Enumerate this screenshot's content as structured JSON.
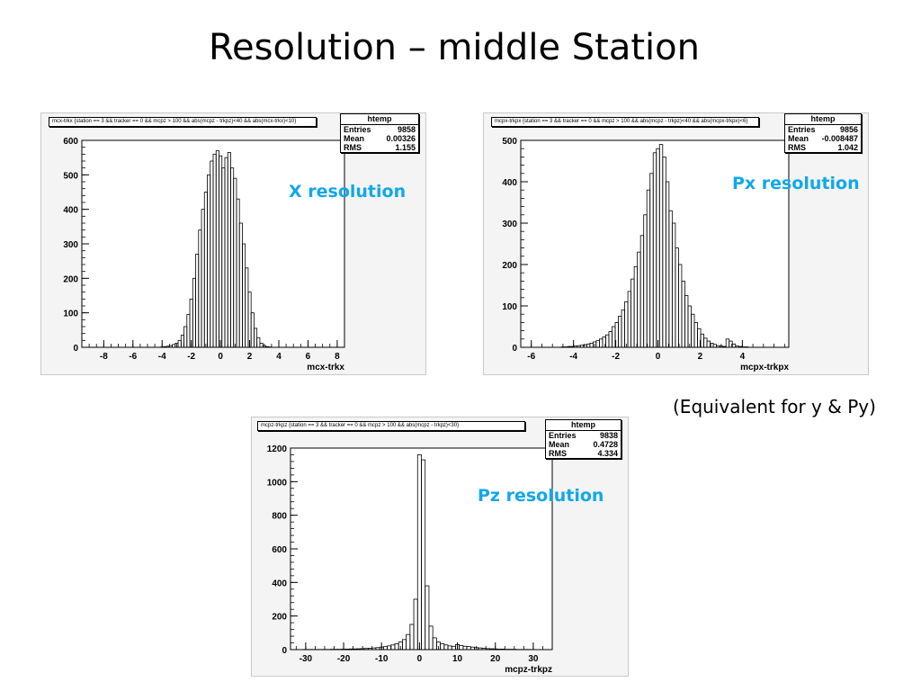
{
  "slide": {
    "title": "Resolution – middle Station",
    "note": "(Equivalent for y & Py)"
  },
  "chart_data": [
    {
      "type": "bar",
      "hist_title": "mcx-trkx {station == 3 && tracker == 0 && mcpz > 100 && abs(mcpz - trkpz)<40 && abs(mcx-trkx)<10}",
      "stats": {
        "name": "htemp",
        "entries_label": "Entries",
        "entries": "9858",
        "mean_label": "Mean",
        "mean": "0.00326",
        "rms_label": "RMS",
        "rms": "1.155"
      },
      "label": "X resolution",
      "xlabel": "mcx-trkx",
      "ylabel": "",
      "xlim": [
        -9.5,
        8.5
      ],
      "ylim": [
        0,
        600
      ],
      "xticks": [
        -8,
        -6,
        -4,
        -2,
        0,
        2,
        4,
        6,
        8
      ],
      "yticks": [
        0,
        100,
        200,
        300,
        400,
        500,
        600
      ],
      "bin_width": 0.2,
      "x": [
        -4.0,
        -3.8,
        -3.6,
        -3.4,
        -3.2,
        -3.0,
        -2.8,
        -2.6,
        -2.4,
        -2.2,
        -2.0,
        -1.8,
        -1.6,
        -1.4,
        -1.2,
        -1.0,
        -0.8,
        -0.6,
        -0.4,
        -0.2,
        0.0,
        0.2,
        0.4,
        0.6,
        0.8,
        1.0,
        1.2,
        1.4,
        1.6,
        1.8,
        2.0,
        2.2,
        2.4,
        2.6,
        2.8,
        3.0,
        3.2,
        3.4
      ],
      "values": [
        1,
        2,
        3,
        5,
        8,
        12,
        20,
        35,
        60,
        95,
        140,
        200,
        270,
        340,
        400,
        450,
        500,
        540,
        560,
        570,
        555,
        520,
        550,
        565,
        520,
        490,
        430,
        360,
        300,
        230,
        160,
        100,
        55,
        28,
        12,
        5,
        2,
        1
      ]
    },
    {
      "type": "bar",
      "hist_title": "mcpx-trkpx {station == 3 && tracker == 0 && mcpz > 100 && abs(mcpz - trkpz)<40 && abs(mcpx-trkpx)<6}",
      "stats": {
        "name": "htemp",
        "entries_label": "Entries",
        "entries": "9856",
        "mean_label": "Mean",
        "mean": "-0.008487",
        "rms_label": "RMS",
        "rms": "1.042"
      },
      "label": "Px resolution",
      "xlabel": "mcpx-trkpx",
      "ylabel": "",
      "xlim": [
        -6.5,
        6.2
      ],
      "ylim": [
        0,
        500
      ],
      "xticks": [
        -6,
        -4,
        -2,
        0,
        2,
        4
      ],
      "yticks": [
        0,
        100,
        200,
        300,
        400,
        500
      ],
      "bin_width": 0.15,
      "x": [
        -4.5,
        -4.35,
        -4.2,
        -4.05,
        -3.9,
        -3.75,
        -3.6,
        -3.45,
        -3.3,
        -3.15,
        -3.0,
        -2.85,
        -2.7,
        -2.55,
        -2.4,
        -2.25,
        -2.1,
        -1.95,
        -1.8,
        -1.65,
        -1.5,
        -1.35,
        -1.2,
        -1.05,
        -0.9,
        -0.75,
        -0.6,
        -0.45,
        -0.3,
        -0.15,
        0.0,
        0.15,
        0.3,
        0.45,
        0.6,
        0.75,
        0.9,
        1.05,
        1.2,
        1.35,
        1.5,
        1.65,
        1.8,
        1.95,
        2.1,
        2.25,
        2.4,
        2.55,
        2.7,
        2.85,
        3.0,
        3.15,
        3.3,
        3.45,
        3.6,
        3.75,
        3.9,
        4.05,
        4.2
      ],
      "values": [
        1,
        1,
        2,
        2,
        3,
        4,
        5,
        6,
        8,
        10,
        13,
        16,
        20,
        25,
        30,
        38,
        50,
        60,
        75,
        90,
        110,
        135,
        165,
        195,
        230,
        270,
        320,
        380,
        420,
        470,
        480,
        490,
        460,
        400,
        330,
        300,
        240,
        200,
        160,
        125,
        100,
        80,
        60,
        45,
        32,
        22,
        15,
        10,
        7,
        4,
        3,
        2,
        20,
        15,
        8,
        3,
        2,
        1,
        1
      ]
    },
    {
      "type": "bar",
      "hist_title": "mcpz-trkpz {station == 3 && tracker == 0 && mcpz > 100 && abs(mcpz - trkpz)<30}",
      "stats": {
        "name": "htemp",
        "entries_label": "Entries",
        "entries": "9838",
        "mean_label": "Mean",
        "mean": "0.4728",
        "rms_label": "RMS",
        "rms": "4.334"
      },
      "label": "Pz resolution",
      "xlabel": "mcpz-trkpz",
      "ylabel": "",
      "xlim": [
        -34,
        35
      ],
      "ylim": [
        0,
        1200
      ],
      "xticks": [
        -30,
        -20,
        -10,
        0,
        10,
        20,
        30
      ],
      "yticks": [
        0,
        200,
        400,
        600,
        800,
        1000,
        1200
      ],
      "bin_width": 1,
      "x": [
        -30,
        -29,
        -28,
        -27,
        -26,
        -25,
        -24,
        -23,
        -22,
        -21,
        -20,
        -19,
        -18,
        -17,
        -16,
        -15,
        -14,
        -13,
        -12,
        -11,
        -10,
        -9,
        -8,
        -7,
        -6,
        -5,
        -4,
        -3,
        -2,
        -1,
        0,
        1,
        2,
        3,
        4,
        5,
        6,
        7,
        8,
        9,
        10,
        11,
        12,
        13,
        14,
        15,
        16,
        17,
        18,
        19,
        20,
        21,
        22,
        23,
        24,
        25,
        26,
        27,
        28,
        29
      ],
      "values": [
        1,
        1,
        1,
        1,
        1,
        1,
        1,
        2,
        2,
        2,
        3,
        3,
        4,
        4,
        5,
        6,
        7,
        8,
        10,
        12,
        15,
        18,
        22,
        28,
        35,
        45,
        60,
        90,
        150,
        300,
        1160,
        1130,
        380,
        140,
        70,
        45,
        35,
        28,
        22,
        20,
        30,
        25,
        20,
        18,
        15,
        12,
        10,
        8,
        6,
        5,
        4,
        3,
        3,
        2,
        2,
        2,
        1,
        1,
        1,
        1
      ]
    }
  ]
}
